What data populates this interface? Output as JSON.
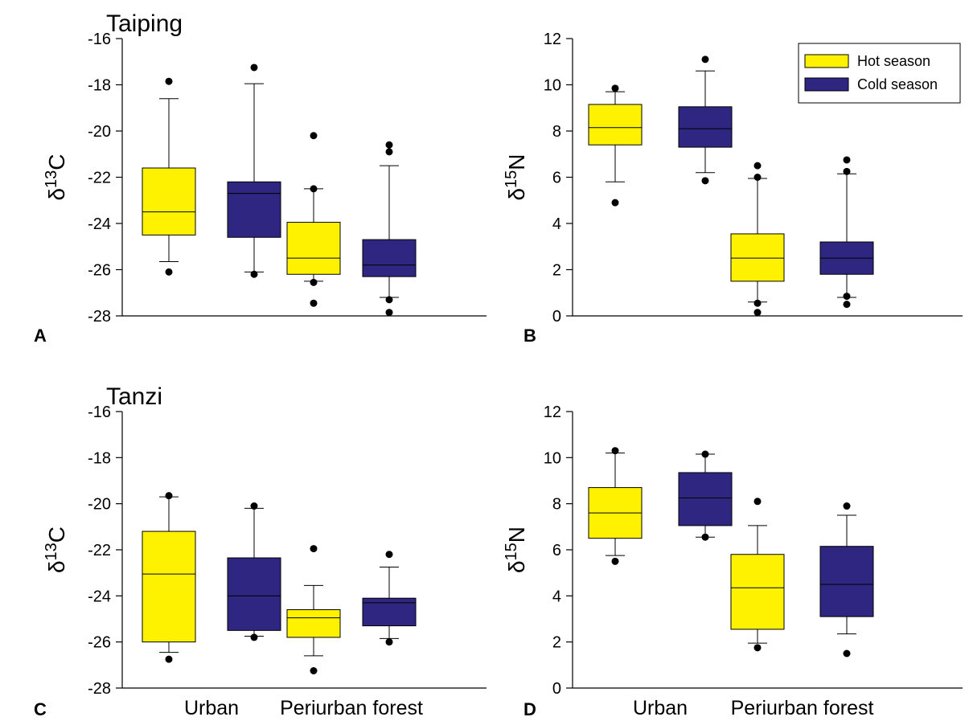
{
  "colors": {
    "hot": "#FFF200",
    "cold": "#2E2680",
    "stroke": "#000000"
  },
  "legend": {
    "position": "top-right of panel B",
    "items": [
      {
        "key": "hot",
        "label": "Hot season"
      },
      {
        "key": "cold",
        "label": "Cold season"
      }
    ]
  },
  "categories": [
    "Urban",
    "Periurban forest"
  ],
  "chart_data": [
    {
      "type": "box",
      "panel": "A",
      "title": "Taiping",
      "ylabel_base": "δ",
      "ylabel_sup": "13",
      "ylabel_sub": "C",
      "ylim": [
        -28,
        -16
      ],
      "ticks": [
        -28,
        -26,
        -24,
        -22,
        -20,
        -18,
        -16
      ],
      "show_xlabels": false,
      "boxes": [
        {
          "cat": 0,
          "series": "hot",
          "q1": -24.5,
          "median": -23.5,
          "q3": -21.6,
          "wlow": -25.65,
          "whigh": -18.6,
          "outliers": [
            -17.85,
            -26.1
          ]
        },
        {
          "cat": 0,
          "series": "cold",
          "q1": -24.6,
          "median": -22.7,
          "q3": -22.2,
          "wlow": -26.1,
          "whigh": -17.95,
          "outliers": [
            -17.25,
            -26.2
          ]
        },
        {
          "cat": 1,
          "series": "hot",
          "q1": -26.2,
          "median": -25.5,
          "q3": -23.95,
          "wlow": -26.5,
          "whigh": -22.5,
          "outliers": [
            -20.2,
            -22.5,
            -26.55,
            -27.45
          ]
        },
        {
          "cat": 1,
          "series": "cold",
          "q1": -26.3,
          "median": -25.8,
          "q3": -24.7,
          "wlow": -27.2,
          "whigh": -21.5,
          "outliers": [
            -20.6,
            -20.9,
            -27.3,
            -27.85
          ]
        }
      ]
    },
    {
      "type": "box",
      "panel": "B",
      "title": "",
      "ylabel_base": "δ",
      "ylabel_sup": "15",
      "ylabel_sub": "N",
      "ylim": [
        0,
        12
      ],
      "ticks": [
        0,
        2,
        4,
        6,
        8,
        10,
        12
      ],
      "show_xlabels": false,
      "boxes": [
        {
          "cat": 0,
          "series": "hot",
          "q1": 7.4,
          "median": 8.15,
          "q3": 9.15,
          "wlow": 5.8,
          "whigh": 9.7,
          "outliers": [
            9.85,
            4.9
          ]
        },
        {
          "cat": 0,
          "series": "cold",
          "q1": 7.3,
          "median": 8.1,
          "q3": 9.05,
          "wlow": 6.2,
          "whigh": 10.6,
          "outliers": [
            11.1,
            5.85
          ]
        },
        {
          "cat": 1,
          "series": "hot",
          "q1": 1.5,
          "median": 2.5,
          "q3": 3.55,
          "wlow": 0.6,
          "whigh": 5.95,
          "outliers": [
            6.5,
            6.0,
            0.55,
            0.15
          ]
        },
        {
          "cat": 1,
          "series": "cold",
          "q1": 1.8,
          "median": 2.5,
          "q3": 3.2,
          "wlow": 0.8,
          "whigh": 6.15,
          "outliers": [
            6.75,
            6.25,
            0.85,
            0.5
          ]
        }
      ]
    },
    {
      "type": "box",
      "panel": "C",
      "title": "Tanzi",
      "ylabel_base": "δ",
      "ylabel_sup": "13",
      "ylabel_sub": "C",
      "ylim": [
        -28,
        -16
      ],
      "ticks": [
        -28,
        -26,
        -24,
        -22,
        -20,
        -18,
        -16
      ],
      "show_xlabels": true,
      "boxes": [
        {
          "cat": 0,
          "series": "hot",
          "q1": -26.0,
          "median": -23.05,
          "q3": -21.2,
          "wlow": -26.45,
          "whigh": -19.7,
          "outliers": [
            -19.65,
            -26.75
          ]
        },
        {
          "cat": 0,
          "series": "cold",
          "q1": -25.5,
          "median": -24.0,
          "q3": -22.35,
          "wlow": -25.75,
          "whigh": -20.2,
          "outliers": [
            -20.1,
            -25.8
          ]
        },
        {
          "cat": 1,
          "series": "hot",
          "q1": -25.8,
          "median": -24.95,
          "q3": -24.6,
          "wlow": -26.6,
          "whigh": -23.55,
          "outliers": [
            -21.95,
            -27.25
          ]
        },
        {
          "cat": 1,
          "series": "cold",
          "q1": -25.3,
          "median": -24.3,
          "q3": -24.1,
          "wlow": -25.85,
          "whigh": -22.75,
          "outliers": [
            -22.2,
            -26.0
          ]
        }
      ]
    },
    {
      "type": "box",
      "panel": "D",
      "title": "",
      "ylabel_base": "δ",
      "ylabel_sup": "15",
      "ylabel_sub": "N",
      "ylim": [
        0,
        12
      ],
      "ticks": [
        0,
        2,
        4,
        6,
        8,
        10,
        12
      ],
      "show_xlabels": true,
      "boxes": [
        {
          "cat": 0,
          "series": "hot",
          "q1": 6.5,
          "median": 7.6,
          "q3": 8.7,
          "wlow": 5.75,
          "whigh": 10.2,
          "outliers": [
            10.3,
            5.5
          ]
        },
        {
          "cat": 0,
          "series": "cold",
          "q1": 7.05,
          "median": 8.25,
          "q3": 9.35,
          "wlow": 6.55,
          "whigh": 10.15,
          "outliers": [
            10.15,
            6.55
          ]
        },
        {
          "cat": 1,
          "series": "hot",
          "q1": 2.55,
          "median": 4.35,
          "q3": 5.8,
          "wlow": 1.95,
          "whigh": 7.05,
          "outliers": [
            8.1,
            1.75
          ]
        },
        {
          "cat": 1,
          "series": "cold",
          "q1": 3.1,
          "median": 4.5,
          "q3": 6.15,
          "wlow": 2.35,
          "whigh": 7.5,
          "outliers": [
            7.9,
            1.5
          ]
        }
      ]
    }
  ]
}
